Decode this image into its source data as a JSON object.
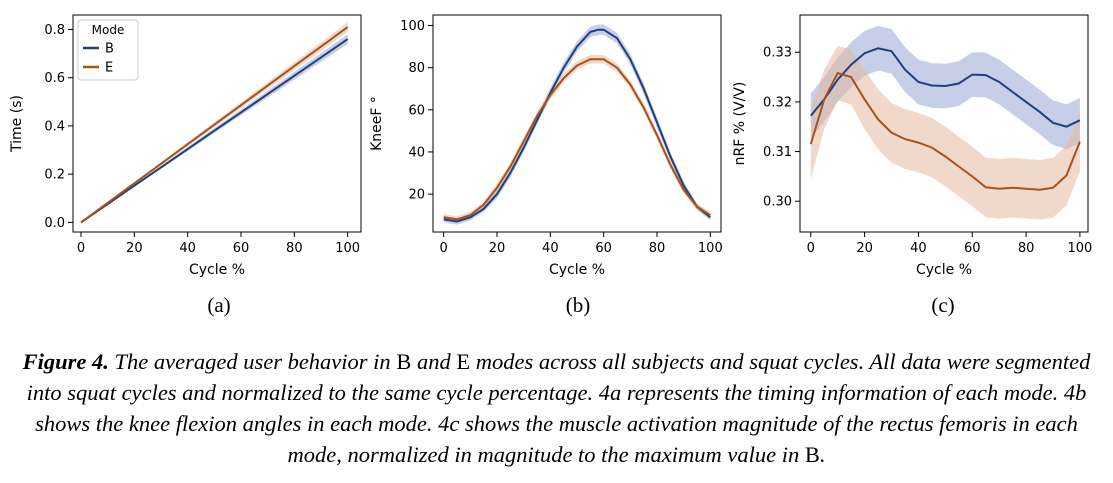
{
  "colors": {
    "B": "#1f3f7f",
    "E": "#a8521a",
    "B_fill": "#98a8d4",
    "E_fill": "#e3b9a0"
  },
  "chart_data": [
    {
      "type": "line",
      "panel_label": "(a)",
      "xlabel": "Cycle %",
      "ylabel": "Time (s)",
      "xlim": [
        -3,
        105
      ],
      "ylim": [
        -0.04,
        0.86
      ],
      "xticks": [
        0,
        20,
        40,
        60,
        80,
        100
      ],
      "yticks": [
        0.0,
        0.2,
        0.4,
        0.6,
        0.8
      ],
      "ytick_labels": [
        "0.0",
        "0.2",
        "0.4",
        "0.6",
        "0.8"
      ],
      "grid": false,
      "legend": {
        "title": "Mode",
        "placement": "top-left",
        "entries": [
          "B",
          "E"
        ]
      },
      "x": [
        0,
        10,
        20,
        30,
        40,
        50,
        60,
        70,
        80,
        90,
        100
      ],
      "series": [
        {
          "name": "B",
          "values": [
            0.0,
            0.076,
            0.152,
            0.228,
            0.304,
            0.38,
            0.456,
            0.532,
            0.608,
            0.684,
            0.76
          ],
          "band": [
            0.0,
            0.002,
            0.004,
            0.006,
            0.008,
            0.01,
            0.012,
            0.014,
            0.016,
            0.018,
            0.02
          ]
        },
        {
          "name": "E",
          "values": [
            0.0,
            0.081,
            0.162,
            0.243,
            0.324,
            0.405,
            0.486,
            0.567,
            0.648,
            0.729,
            0.81
          ],
          "band": [
            0.0,
            0.002,
            0.004,
            0.006,
            0.008,
            0.01,
            0.012,
            0.014,
            0.016,
            0.018,
            0.02
          ]
        }
      ]
    },
    {
      "type": "line",
      "panel_label": "(b)",
      "xlabel": "Cycle %",
      "ylabel": "KneeF °",
      "xlim": [
        -4,
        104
      ],
      "ylim": [
        2,
        105
      ],
      "xticks": [
        0,
        20,
        40,
        60,
        80,
        100
      ],
      "yticks": [
        20,
        40,
        60,
        80,
        100
      ],
      "ytick_labels": [
        "20",
        "40",
        "60",
        "80",
        "100"
      ],
      "grid": false,
      "x": [
        0,
        5,
        10,
        15,
        20,
        25,
        30,
        35,
        40,
        45,
        50,
        55,
        58,
        60,
        65,
        70,
        75,
        80,
        85,
        90,
        95,
        100
      ],
      "series": [
        {
          "name": "B",
          "values": [
            8,
            7,
            9,
            13,
            20,
            30,
            42,
            55,
            68,
            80,
            90,
            97,
            98,
            98,
            94,
            84,
            70,
            54,
            38,
            24,
            14,
            9
          ],
          "band": [
            1.5,
            1.5,
            1.5,
            1.5,
            2,
            2,
            2,
            2,
            2.5,
            2.5,
            2.5,
            2.5,
            2.5,
            2.5,
            2.5,
            2.5,
            2.5,
            2.5,
            2,
            2,
            1.5,
            1.5
          ]
        },
        {
          "name": "E",
          "values": [
            9,
            8,
            10,
            15,
            23,
            33,
            45,
            57,
            67,
            75,
            81,
            84,
            84,
            84,
            80,
            72,
            61,
            48,
            34,
            22,
            14,
            10
          ],
          "band": [
            1.5,
            1.5,
            1.5,
            1.5,
            2,
            2,
            2,
            2,
            2,
            2,
            2,
            2,
            2,
            2,
            2,
            2,
            2,
            2,
            2,
            1.5,
            1.5,
            1.5
          ]
        }
      ]
    },
    {
      "type": "line",
      "panel_label": "(c)",
      "xlabel": "Cycle %",
      "ylabel": "nRF % (V/V)",
      "xlim": [
        -4,
        103
      ],
      "ylim": [
        0.2938,
        0.3375
      ],
      "xticks": [
        0,
        20,
        40,
        60,
        80,
        100
      ],
      "yticks": [
        0.3,
        0.31,
        0.32,
        0.33
      ],
      "ytick_labels": [
        "0.30",
        "0.31",
        "0.32",
        "0.33"
      ],
      "grid": false,
      "x": [
        0,
        5,
        10,
        15,
        20,
        25,
        30,
        35,
        40,
        45,
        50,
        55,
        60,
        65,
        70,
        75,
        80,
        85,
        90,
        95,
        100
      ],
      "series": [
        {
          "name": "B",
          "values": [
            0.3172,
            0.3205,
            0.3245,
            0.3275,
            0.3298,
            0.3308,
            0.3302,
            0.3265,
            0.324,
            0.3233,
            0.3232,
            0.3237,
            0.3255,
            0.3254,
            0.324,
            0.322,
            0.32,
            0.318,
            0.3158,
            0.315,
            0.3163
          ],
          "band": [
            0.0045,
            0.0045,
            0.0045,
            0.0045,
            0.0045,
            0.0045,
            0.0045,
            0.0045,
            0.0045,
            0.0045,
            0.0045,
            0.0045,
            0.0045,
            0.0045,
            0.0045,
            0.0045,
            0.0045,
            0.0045,
            0.0045,
            0.0045,
            0.0045
          ]
        },
        {
          "name": "E",
          "values": [
            0.3115,
            0.3205,
            0.3258,
            0.325,
            0.3205,
            0.3165,
            0.3138,
            0.3125,
            0.3118,
            0.3108,
            0.309,
            0.307,
            0.305,
            0.3028,
            0.3025,
            0.3027,
            0.3025,
            0.3023,
            0.3027,
            0.3052,
            0.312
          ],
          "band": [
            0.007,
            0.006,
            0.0055,
            0.0055,
            0.006,
            0.006,
            0.006,
            0.006,
            0.006,
            0.006,
            0.006,
            0.006,
            0.006,
            0.006,
            0.006,
            0.006,
            0.006,
            0.006,
            0.006,
            0.006,
            0.006
          ]
        }
      ]
    }
  ],
  "caption": {
    "label": "Figure 4.",
    "segments": [
      {
        "text": "The averaged user behavior in ",
        "mode": false
      },
      {
        "text": "B",
        "mode": true
      },
      {
        "text": " and ",
        "mode": false
      },
      {
        "text": "E",
        "mode": true
      },
      {
        "text": " modes across all subjects and squat cycles. All data were segmented into squat cycles and normalized to the same cycle percentage. 4a represents the timing information of each mode. 4b shows the knee flexion angles in each mode. 4c shows the muscle activation magnitude of the rectus femoris in each mode, normalized in magnitude to the maximum value in ",
        "mode": false
      },
      {
        "text": "B",
        "mode": true
      },
      {
        "text": ".",
        "mode": false
      }
    ]
  }
}
